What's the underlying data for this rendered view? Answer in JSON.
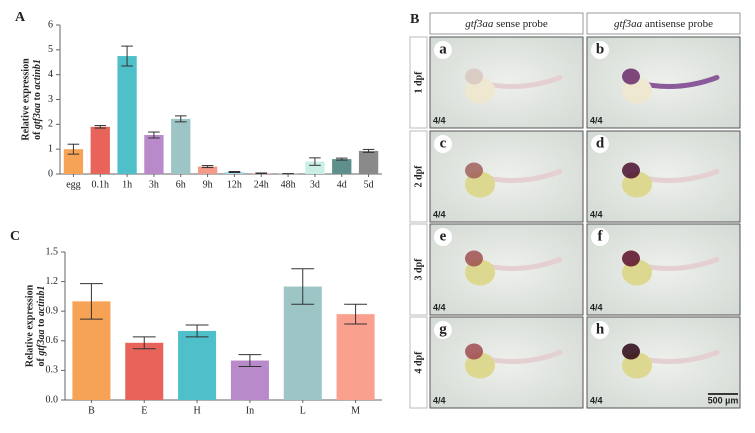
{
  "chart_data": [
    {
      "type": "bar",
      "panel_label": "A",
      "ylabel": {
        "line1": "Relative expression",
        "line2": [
          "of ",
          "gtf3aa",
          " to ",
          "actinb1"
        ]
      },
      "categories": [
        "egg",
        "0.1h",
        "1h",
        "3h",
        "6h",
        "9h",
        "12h",
        "24h",
        "48h",
        "3d",
        "4d",
        "5d"
      ],
      "values": [
        1.0,
        1.9,
        4.75,
        1.57,
        2.22,
        0.3,
        0.08,
        0.03,
        0.01,
        0.5,
        0.6,
        0.93
      ],
      "error": [
        0.2,
        0.05,
        0.4,
        0.12,
        0.12,
        0.04,
        0.02,
        0.01,
        0.005,
        0.15,
        0.04,
        0.06
      ],
      "colors": [
        "#f7a355",
        "#e8645a",
        "#4fbfc9",
        "#b98ac9",
        "#9ec5c5",
        "#f49a8a",
        "#a9d9ec",
        "#f4a6a6",
        "#c7e8e0",
        "#c9efe5",
        "#5e8f8c",
        "#8a8a8a"
      ],
      "ylim": [
        0,
        6
      ],
      "yticks": [
        0,
        1,
        2,
        3,
        4,
        5,
        6
      ]
    },
    {
      "type": "bar",
      "panel_label": "C",
      "ylabel": {
        "line1": "Relative expression",
        "line2": [
          "of ",
          "gtf3aa",
          " to ",
          "actinb1"
        ]
      },
      "categories": [
        "B",
        "E",
        "H",
        "In",
        "L",
        "M"
      ],
      "values": [
        1.0,
        0.58,
        0.7,
        0.4,
        1.15,
        0.87
      ],
      "error": [
        0.18,
        0.06,
        0.06,
        0.06,
        0.18,
        0.1
      ],
      "colors": [
        "#f7a355",
        "#e8645a",
        "#4fbfc9",
        "#b98ac9",
        "#9ec5c5",
        "#f9a08e"
      ],
      "ylim": [
        0,
        1.5
      ],
      "yticks": [
        {
          "value": 0,
          "label": "0.0"
        },
        0.3,
        0.6,
        0.9,
        1.2,
        1.5
      ]
    }
  ],
  "image_panel": {
    "panel_label": "B",
    "columns": [
      [
        "gtf3aa",
        " sense probe"
      ],
      [
        "gtf3aa",
        " antisense probe"
      ]
    ],
    "rows": [
      "1 dpf",
      "2 dpf",
      "3 dpf",
      "4 dpf"
    ],
    "letters": [
      [
        "a",
        "b"
      ],
      [
        "c",
        "d"
      ],
      [
        "e",
        "f"
      ],
      [
        "g",
        "h"
      ]
    ],
    "counts": [
      [
        "4/4",
        "4/4"
      ],
      [
        "4/4",
        "4/4"
      ],
      [
        "4/4",
        "4/4"
      ],
      [
        "4/4",
        "4/4"
      ]
    ],
    "scale_bar": "500 µm"
  }
}
